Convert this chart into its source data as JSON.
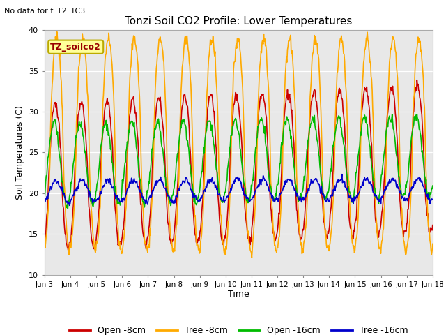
{
  "title": "Tonzi Soil CO2 Profile: Lower Temperatures",
  "subtitle": "No data for f_T2_TC3",
  "ylabel": "Soil Temperatures (C)",
  "xlabel": "Time",
  "ylim": [
    10,
    40
  ],
  "bg_color": "#e8e8e8",
  "legend_label": "TZ_soilco2",
  "series": {
    "Open -8cm": {
      "color": "#cc0000",
      "lw": 1.2
    },
    "Tree -8cm": {
      "color": "#ffaa00",
      "lw": 1.2
    },
    "Open -16cm": {
      "color": "#00bb00",
      "lw": 1.2
    },
    "Tree -16cm": {
      "color": "#0000cc",
      "lw": 1.2
    }
  },
  "xtick_labels": [
    "Jun 3",
    "Jun 4",
    "Jun 5",
    "Jun 6",
    "Jun 7",
    "Jun 8",
    "Jun 9",
    "Jun 10",
    "Jun 11",
    "Jun 12",
    "Jun 13",
    "Jun 14",
    "Jun 15",
    "Jun 16",
    "Jun 17",
    "Jun 18"
  ],
  "ytick_values": [
    10,
    15,
    20,
    25,
    30,
    35,
    40
  ],
  "n_days": 15,
  "pts_per_day": 48
}
